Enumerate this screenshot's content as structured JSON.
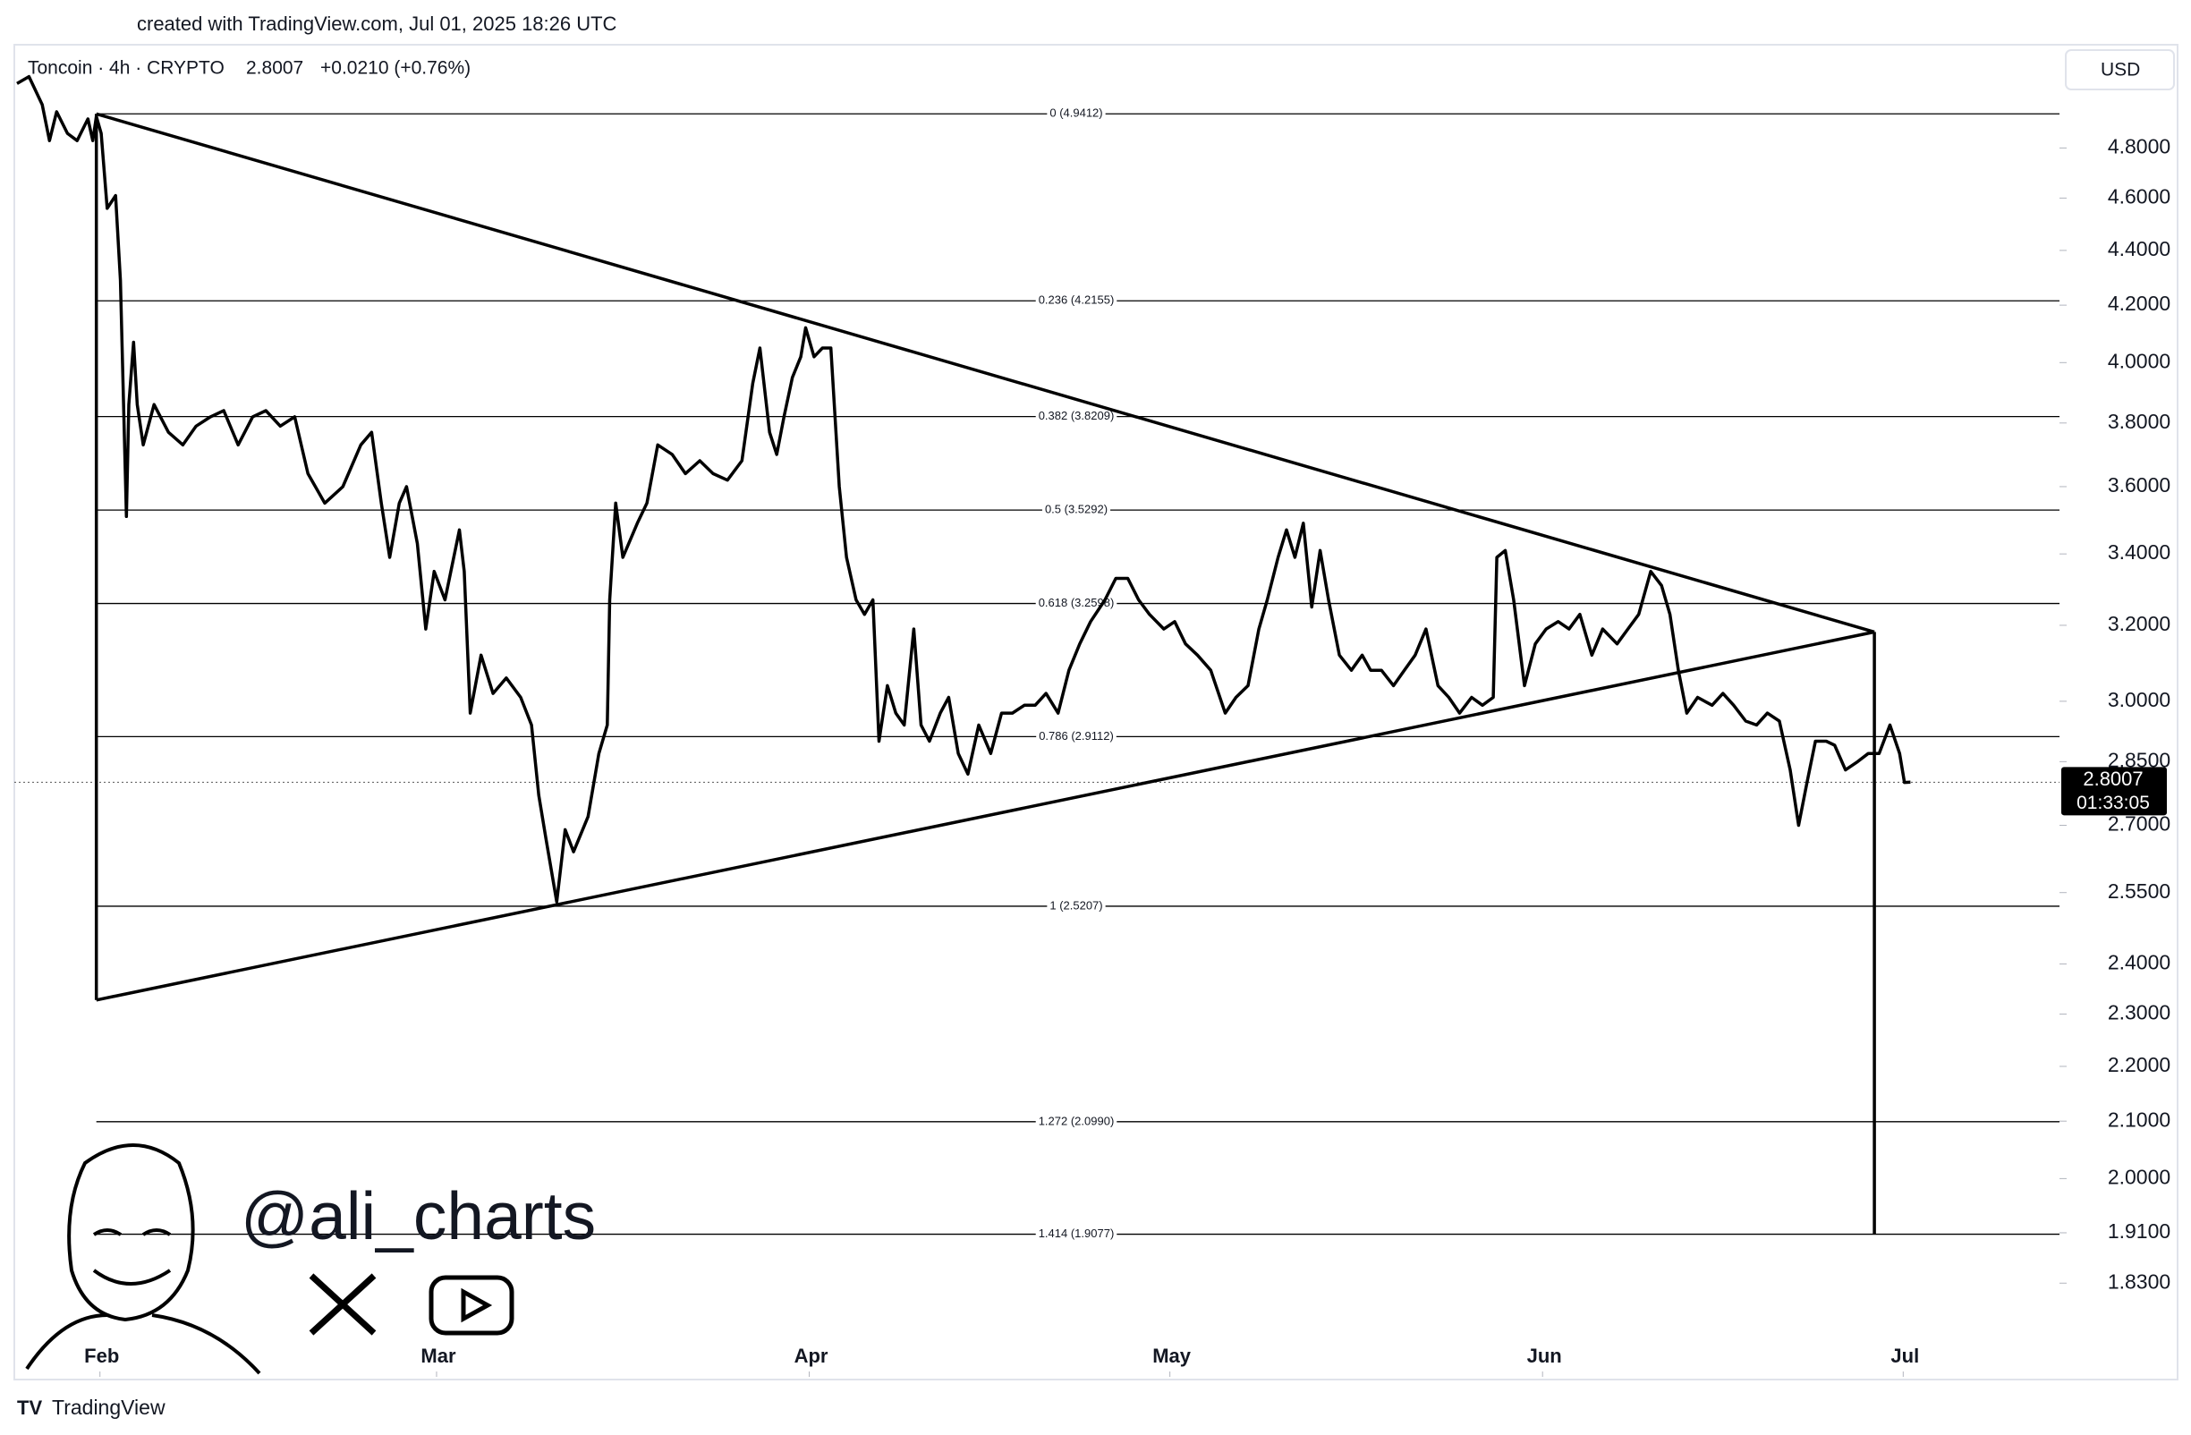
{
  "header": {
    "created": "created with TradingView.com, Jul 01, 2025 18:26 UTC",
    "symbol": "Toncoin · 4h · CRYPTO",
    "change": "+0.0210 (+0.76%)",
    "currency": "USD"
  },
  "chart_data": {
    "type": "line",
    "color": "#000000",
    "log_scale": true,
    "last_price": 2.8007,
    "countdown": "01:33:05",
    "x": [
      -6.9,
      -5.9,
      -4.8,
      -4.2,
      -3.6,
      -2.7,
      -1.9,
      -1.0,
      -0.6,
      -0.3,
      0.1,
      0.6,
      1.3,
      1.7,
      2.2,
      2.4,
      2.8,
      3.1,
      3.6,
      4.5,
      5.7,
      6.9,
      8.0,
      9.2,
      10.3,
      11.5,
      12.7,
      13.8,
      15.0,
      16.2,
      17.3,
      18.7,
      20.2,
      21.7,
      22.6,
      23.4,
      24.1,
      24.9,
      25.5,
      26.4,
      27.1,
      27.8,
      28.7,
      29.9,
      30.3,
      30.8,
      31.7,
      32.7,
      33.8,
      35.0,
      35.9,
      36.5,
      37.1,
      38.0,
      38.7,
      39.4,
      40.6,
      41.5,
      42.2,
      42.4,
      42.9,
      43.5,
      44.7,
      45.5,
      46.4,
      47.6,
      48.7,
      49.9,
      51.0,
      52.2,
      53.4,
      54.3,
      54.9,
      55.7,
      56.3,
      56.9,
      57.6,
      58.3,
      58.7,
      59.4,
      60.1,
      60.8,
      61.5,
      62.1,
      62.9,
      63.6,
      64.3,
      64.8,
      65.5,
      66.2,
      66.9,
      67.7,
      68.3,
      69.0,
      69.9,
      70.6,
      71.4,
      72.2,
      73.1,
      74.1,
      75.0,
      75.9,
      76.9,
      77.8,
      78.7,
      79.7,
      80.6,
      81.5,
      82.4,
      83.6,
      84.5,
      85.5,
      86.4,
      87.3,
      88.5,
      89.4,
      90.3,
      91.3,
      92.4,
      93.6,
      94.5,
      95.5,
      96.4,
      97.1,
      98.0,
      98.7,
      99.4,
      100.1,
      100.8,
      101.5,
      102.2,
      103.1,
      104.1,
      105.0,
      105.7,
      106.6,
      107.6,
      108.5,
      109.4,
      110.3,
      111.3,
      112.2,
      113.1,
      114.1,
      115.0,
      115.9,
      116.2,
      116.9,
      117.6,
      118.5,
      119.4,
      120.3,
      121.3,
      122.2,
      123.1,
      124.1,
      125.0,
      126.2,
      127.1,
      128.0,
      129.0,
      129.9,
      130.6,
      131.3,
      132.0,
      132.9,
      134.1,
      135.0,
      135.9,
      136.9,
      137.8,
      138.7,
      139.7,
      140.6,
      141.3,
      142.0,
      142.7,
      143.6,
      144.3,
      145.2,
      146.2,
      147.1,
      148.0,
      148.9,
      149.7,
      150.1,
      150.6
    ],
    "values": [
      5.07,
      5.1,
      4.98,
      4.83,
      4.95,
      4.86,
      4.83,
      4.92,
      4.83,
      4.93,
      4.86,
      4.56,
      4.61,
      4.29,
      3.51,
      3.86,
      4.07,
      3.86,
      3.73,
      3.86,
      3.77,
      3.73,
      3.79,
      3.82,
      3.84,
      3.73,
      3.82,
      3.84,
      3.79,
      3.82,
      3.64,
      3.55,
      3.6,
      3.73,
      3.77,
      3.55,
      3.39,
      3.55,
      3.6,
      3.43,
      3.19,
      3.35,
      3.27,
      3.47,
      3.35,
      2.97,
      3.12,
      3.02,
      3.06,
      3.01,
      2.94,
      2.77,
      2.67,
      2.53,
      2.69,
      2.64,
      2.72,
      2.87,
      2.94,
      3.27,
      3.55,
      3.39,
      3.49,
      3.55,
      3.73,
      3.7,
      3.64,
      3.68,
      3.64,
      3.62,
      3.68,
      3.93,
      4.05,
      3.77,
      3.7,
      3.82,
      3.95,
      4.02,
      4.12,
      4.02,
      4.05,
      4.05,
      3.6,
      3.39,
      3.27,
      3.23,
      3.27,
      2.9,
      3.04,
      2.97,
      2.94,
      3.19,
      2.94,
      2.9,
      2.97,
      3.01,
      2.87,
      2.82,
      2.94,
      2.87,
      2.97,
      2.97,
      2.99,
      2.99,
      3.02,
      2.97,
      3.08,
      3.15,
      3.21,
      3.27,
      3.33,
      3.33,
      3.27,
      3.23,
      3.19,
      3.21,
      3.15,
      3.12,
      3.08,
      2.97,
      3.01,
      3.04,
      3.19,
      3.27,
      3.39,
      3.47,
      3.39,
      3.49,
      3.25,
      3.41,
      3.27,
      3.12,
      3.08,
      3.12,
      3.08,
      3.08,
      3.04,
      3.08,
      3.12,
      3.19,
      3.04,
      3.01,
      2.97,
      3.01,
      2.99,
      3.01,
      3.39,
      3.41,
      3.27,
      3.04,
      3.15,
      3.19,
      3.21,
      3.19,
      3.23,
      3.12,
      3.19,
      3.15,
      3.19,
      3.23,
      3.35,
      3.31,
      3.23,
      3.08,
      2.97,
      3.01,
      2.99,
      3.02,
      2.99,
      2.95,
      2.94,
      2.97,
      2.95,
      2.83,
      2.7,
      2.8,
      2.9,
      2.9,
      2.89,
      2.83,
      2.85,
      2.87,
      2.87,
      2.94,
      2.87,
      2.8,
      2.8007
    ],
    "xlim": [
      -6.9,
      163
    ],
    "ylim": [
      1.69,
      5.24
    ],
    "xticks": [
      {
        "value": 0,
        "label": "Feb"
      },
      {
        "value": 28,
        "label": "Mar"
      },
      {
        "value": 59,
        "label": "Apr"
      },
      {
        "value": 89,
        "label": "May"
      },
      {
        "value": 120,
        "label": "Jun"
      },
      {
        "value": 150,
        "label": "Jul"
      }
    ],
    "yticks": [
      {
        "value": 4.8,
        "label": "4.8000"
      },
      {
        "value": 4.6,
        "label": "4.6000"
      },
      {
        "value": 4.4,
        "label": "4.4000"
      },
      {
        "value": 4.2,
        "label": "4.2000"
      },
      {
        "value": 4.0,
        "label": "4.0000"
      },
      {
        "value": 3.8,
        "label": "3.8000"
      },
      {
        "value": 3.6,
        "label": "3.6000"
      },
      {
        "value": 3.4,
        "label": "3.4000"
      },
      {
        "value": 3.2,
        "label": "3.2000"
      },
      {
        "value": 3.0,
        "label": "3.0000"
      },
      {
        "value": 2.85,
        "label": "2.8500"
      },
      {
        "value": 2.7,
        "label": "2.7000"
      },
      {
        "value": 2.55,
        "label": "2.5500"
      },
      {
        "value": 2.4,
        "label": "2.4000"
      },
      {
        "value": 2.3,
        "label": "2.3000"
      },
      {
        "value": 2.2,
        "label": "2.2000"
      },
      {
        "value": 2.1,
        "label": "2.1000"
      },
      {
        "value": 2.0,
        "label": "2.0000"
      },
      {
        "value": 1.91,
        "label": "1.9100"
      },
      {
        "value": 1.83,
        "label": "1.8300"
      }
    ],
    "fib_levels": [
      {
        "value": 4.9412,
        "label": "0 (4.9412)"
      },
      {
        "value": 4.2155,
        "label": "0.236 (4.2155)"
      },
      {
        "value": 3.8209,
        "label": "0.382 (3.8209)"
      },
      {
        "value": 3.5292,
        "label": "0.5 (3.5292)"
      },
      {
        "value": 3.2598,
        "label": "0.618 (3.2598)"
      },
      {
        "value": 2.9112,
        "label": "0.786 (2.9112)"
      },
      {
        "value": 2.5207,
        "label": "1 (2.5207)"
      },
      {
        "value": 2.099,
        "label": "1.272 (2.0990)"
      },
      {
        "value": 1.9077,
        "label": "1.414 (1.9077)"
      }
    ],
    "trendlines": [
      {
        "x": [
          -0.3,
          147.6
        ],
        "values": [
          4.9412,
          3.182
        ]
      },
      {
        "x": [
          -0.3,
          147.6
        ],
        "values": [
          2.3276,
          3.182
        ]
      },
      {
        "x": [
          -0.3,
          -0.3
        ],
        "values": [
          4.9412,
          2.3276
        ]
      },
      {
        "x": [
          147.6,
          147.6
        ],
        "values": [
          3.182,
          1.9077
        ]
      }
    ]
  },
  "watermark": "@ali_charts",
  "footer": "TradingView"
}
